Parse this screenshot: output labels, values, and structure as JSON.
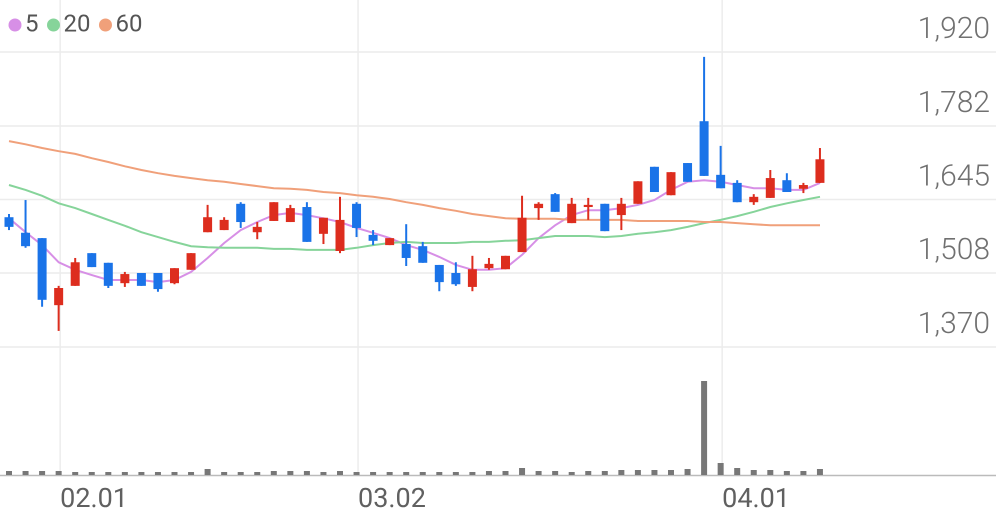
{
  "chart_data": {
    "type": "candlestick",
    "categories": [
      null,
      null,
      null,
      "02.01",
      null,
      null,
      null,
      null,
      null,
      null,
      null,
      null,
      null,
      null,
      null,
      null,
      null,
      null,
      null,
      null,
      null,
      "03.02",
      null,
      null,
      null,
      null,
      null,
      null,
      null,
      null,
      null,
      null,
      null,
      null,
      null,
      null,
      null,
      null,
      null,
      null,
      null,
      null,
      null,
      "04.01",
      null,
      null,
      null,
      null,
      null,
      null
    ],
    "open": [
      1612,
      1583,
      1573,
      1448,
      1484,
      1545,
      1527,
      1489,
      1508,
      1508,
      1489,
      1514,
      1584,
      1588,
      1637,
      1584,
      1605,
      1603,
      1631,
      1581,
      1549,
      1637,
      1579,
      1560,
      1562,
      1558,
      1523,
      1508,
      1482,
      1517,
      1515,
      1547,
      1629,
      1655,
      1601,
      1631,
      1637,
      1616,
      1637,
      1706,
      1653,
      1713,
      1791,
      1691,
      1676,
      1640,
      1648,
      1681,
      1665,
      1676
    ],
    "high": [
      1618,
      1644,
      1573,
      1484,
      1536,
      1545,
      1527,
      1510,
      1508,
      1508,
      1517,
      1545,
      1635,
      1612,
      1640,
      1603,
      1640,
      1635,
      1640,
      1611,
      1650,
      1640,
      1588,
      1573,
      1599,
      1566,
      1523,
      1528,
      1540,
      1536,
      1540,
      1652,
      1640,
      1657,
      1648,
      1648,
      1637,
      1648,
      1679,
      1706,
      1696,
      1713,
      1911,
      1745,
      1681,
      1655,
      1700,
      1694,
      1676,
      1741
    ],
    "low": [
      1588,
      1555,
      1445,
      1400,
      1484,
      1519,
      1480,
      1482,
      1484,
      1473,
      1487,
      1514,
      1584,
      1588,
      1592,
      1571,
      1605,
      1603,
      1566,
      1562,
      1545,
      1575,
      1560,
      1560,
      1521,
      1527,
      1474,
      1484,
      1474,
      1514,
      1515,
      1547,
      1607,
      1622,
      1601,
      1607,
      1586,
      1588,
      1637,
      1659,
      1653,
      1678,
      1689,
      1666,
      1640,
      1635,
      1648,
      1659,
      1657,
      1676
    ],
    "close": [
      1594,
      1558,
      1458,
      1480,
      1528,
      1519,
      1484,
      1506,
      1484,
      1478,
      1517,
      1545,
      1612,
      1607,
      1603,
      1594,
      1640,
      1629,
      1566,
      1611,
      1607,
      1592,
      1568,
      1573,
      1536,
      1527,
      1491,
      1487,
      1515,
      1525,
      1540,
      1611,
      1637,
      1622,
      1637,
      1635,
      1586,
      1637,
      1679,
      1659,
      1696,
      1678,
      1689,
      1666,
      1640,
      1650,
      1685,
      1659,
      1672,
      1720
    ],
    "volume": [
      4,
      4,
      4,
      4,
      3,
      3,
      3,
      3,
      3,
      3,
      3,
      3,
      6,
      3,
      3,
      3,
      4,
      4,
      4,
      3,
      4,
      3,
      3,
      3,
      3,
      3,
      3,
      3,
      3,
      4,
      4,
      7,
      4,
      4,
      3,
      4,
      4,
      5,
      5,
      5,
      5,
      6,
      94,
      12,
      7,
      5,
      5,
      4,
      4,
      6
    ],
    "volume_lim": [
      0,
      128
    ],
    "up_color": "#dd2d1e",
    "down_color": "#1a73e8",
    "volume_color": "#777777",
    "series": [
      {
        "name": "5",
        "color": "#d78fe6",
        "values": [
          1610,
          1584,
          1560,
          1528,
          1514,
          1504,
          1495,
          1495,
          1495,
          1491,
          1495,
          1510,
          1536,
          1564,
          1588,
          1603,
          1616,
          1620,
          1616,
          1610,
          1603,
          1592,
          1583,
          1573,
          1560,
          1551,
          1538,
          1523,
          1514,
          1514,
          1517,
          1542,
          1573,
          1597,
          1616,
          1625,
          1625,
          1629,
          1635,
          1644,
          1663,
          1678,
          1681,
          1678,
          1672,
          1666,
          1666,
          1663,
          1663,
          1676
        ]
      },
      {
        "name": "20",
        "color": "#86d49a",
        "values": [
          1672,
          1663,
          1652,
          1638,
          1629,
          1618,
          1607,
          1596,
          1584,
          1575,
          1566,
          1558,
          1556,
          1555,
          1555,
          1555,
          1553,
          1553,
          1551,
          1551,
          1551,
          1555,
          1560,
          1564,
          1566,
          1564,
          1564,
          1564,
          1566,
          1566,
          1568,
          1569,
          1573,
          1577,
          1577,
          1577,
          1575,
          1577,
          1581,
          1584,
          1588,
          1594,
          1601,
          1607,
          1614,
          1622,
          1631,
          1638,
          1644,
          1650
        ]
      },
      {
        "name": "60",
        "color": "#f0a07a",
        "values": [
          1754,
          1748,
          1741,
          1735,
          1730,
          1722,
          1715,
          1707,
          1700,
          1694,
          1689,
          1685,
          1681,
          1678,
          1674,
          1670,
          1666,
          1665,
          1663,
          1659,
          1657,
          1653,
          1650,
          1646,
          1640,
          1635,
          1629,
          1624,
          1618,
          1614,
          1610,
          1609,
          1609,
          1609,
          1607,
          1607,
          1607,
          1607,
          1605,
          1605,
          1605,
          1605,
          1603,
          1603,
          1601,
          1599,
          1597,
          1597,
          1597,
          1597
        ]
      }
    ],
    "ylim": [
      1370,
      2017
    ],
    "yticks": [
      {
        "value": 1920,
        "label": "1,920"
      },
      {
        "value": 1782,
        "label": "1,782"
      },
      {
        "value": 1645,
        "label": "1,645"
      },
      {
        "value": 1508,
        "label": "1,508"
      },
      {
        "value": 1370,
        "label": "1,370"
      }
    ],
    "grid": true
  }
}
